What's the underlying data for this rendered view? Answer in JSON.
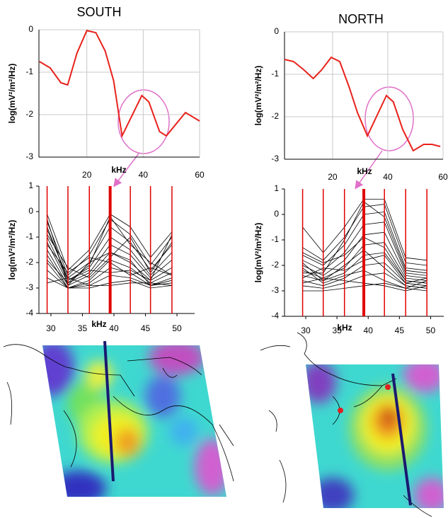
{
  "chart_data": [
    {
      "type": "line",
      "title": "SOUTH",
      "x_label": "kHz",
      "y_label": "log(mV²/m²/Hz)",
      "x": [
        3.2,
        7,
        10.8,
        13.2,
        16.5,
        20,
        23.2,
        26.5,
        29.5,
        32.5,
        39.5,
        42,
        45.8,
        48.2,
        55,
        60
      ],
      "series": [
        {
          "color": "#e8221c",
          "values": [
            -0.75,
            -0.9,
            -1.25,
            -1.3,
            -0.55,
            -0.02,
            -0.07,
            -0.5,
            -1.2,
            -2.5,
            -1.55,
            -1.7,
            -2.4,
            -2.5,
            -1.95,
            -2.15
          ]
        }
      ],
      "xlim": [
        3,
        60
      ],
      "xticks": [
        20,
        40,
        60
      ],
      "ylim": [
        -3,
        0
      ],
      "yticks": [
        0,
        -1,
        -2,
        -3
      ],
      "grid": true
    },
    {
      "type": "line",
      "title": "NORTH",
      "x_label": "kHz",
      "y_label": "log(mV²/m²/Hz)",
      "x": [
        2.6,
        5.9,
        9.7,
        13,
        16,
        19.5,
        22.6,
        26,
        29,
        32.6,
        39.5,
        42,
        45.4,
        49.2,
        53,
        56,
        59
      ],
      "series": [
        {
          "color": "#e8221c",
          "values": [
            -0.65,
            -0.7,
            -0.9,
            -1.1,
            -0.9,
            -0.6,
            -0.7,
            -1.3,
            -1.9,
            -2.45,
            -1.5,
            -1.65,
            -2.3,
            -2.8,
            -2.65,
            -2.65,
            -2.7
          ]
        }
      ],
      "xlim": [
        2.6,
        60
      ],
      "xticks": [
        20,
        40,
        60
      ],
      "ylim": [
        -3,
        0
      ],
      "yticks": [
        0,
        -1,
        -2,
        -3
      ],
      "grid": true
    },
    {
      "type": "line",
      "x_label": "kHz",
      "y_label": "log(mV²/m²/Hz)",
      "x": [
        29.4,
        32.7,
        36.1,
        39.4,
        42.6,
        45.8,
        49.2
      ],
      "vline_color": "#e00000",
      "vline_highlight_index": 3,
      "series": [
        {
          "color": "#000000",
          "values": [
            -0.1,
            -2.3,
            -1.5,
            -0.1,
            -0.6,
            -1.8,
            -0.8
          ]
        },
        {
          "color": "#000000",
          "values": [
            -0.4,
            -2.5,
            -1.7,
            -0.3,
            -0.9,
            -2.1,
            -1.0
          ]
        },
        {
          "color": "#000000",
          "values": [
            -0.7,
            -2.6,
            -2.0,
            -0.6,
            -1.2,
            -2.3,
            -1.3
          ]
        },
        {
          "color": "#000000",
          "values": [
            -1.0,
            -2.7,
            -2.2,
            -1.0,
            -1.5,
            -2.5,
            -1.6
          ]
        },
        {
          "color": "#000000",
          "values": [
            -1.2,
            -2.8,
            -2.4,
            -1.3,
            -1.7,
            -2.6,
            -1.9
          ]
        },
        {
          "color": "#000000",
          "values": [
            -1.5,
            -2.9,
            -2.5,
            -1.6,
            -2.0,
            -2.7,
            -2.2
          ]
        },
        {
          "color": "#000000",
          "values": [
            -1.7,
            -3.0,
            -2.7,
            -1.9,
            -2.2,
            -2.8,
            -2.4
          ]
        },
        {
          "color": "#000000",
          "values": [
            -2.0,
            -3.0,
            -2.8,
            -2.2,
            -2.4,
            -2.9,
            -2.6
          ]
        },
        {
          "color": "#000000",
          "values": [
            -2.3,
            -3.0,
            -2.9,
            -2.5,
            -2.6,
            -2.9,
            -2.7
          ]
        },
        {
          "color": "#000000",
          "values": [
            -2.6,
            -3.0,
            -3.0,
            -2.8,
            -2.7,
            -3.0,
            -2.9
          ]
        },
        {
          "color": "#000000",
          "values": [
            -0.3,
            -2.9,
            -2.0,
            -1.6,
            -1.9,
            -2.9,
            -2.8
          ]
        },
        {
          "color": "#000000",
          "values": [
            -1.3,
            -2.4,
            -1.8,
            -2.0,
            -2.5,
            -2.2,
            -2.5
          ]
        },
        {
          "color": "#000000",
          "values": [
            -0.9,
            -2.2,
            -2.6,
            -1.8,
            -1.0,
            -2.4,
            -1.2
          ]
        },
        {
          "color": "#000000",
          "values": [
            -2.8,
            -2.6,
            -2.9,
            -2.9,
            -2.8,
            -2.8,
            -2.9
          ]
        },
        {
          "color": "#000000",
          "values": [
            -1.9,
            -2.8,
            -2.1,
            -0.2,
            -1.3,
            -2.0,
            -2.5
          ]
        },
        {
          "color": "#000000",
          "values": [
            -0.6,
            -2.7,
            -2.3,
            -2.4,
            -2.3,
            -2.7,
            -0.9
          ]
        }
      ],
      "xlim": [
        28.1,
        52.8
      ],
      "xticks": [
        30,
        35,
        40,
        45,
        50
      ],
      "ylim": [
        -4,
        1
      ],
      "yticks": [
        1,
        0,
        -1,
        -2,
        -3,
        -4
      ],
      "grid": false
    },
    {
      "type": "line",
      "x_label": "kHz",
      "y_label": "log(mV²/m²/Hz)",
      "x": [
        29.5,
        32.8,
        36.2,
        39.3,
        42.6,
        46,
        49.4
      ],
      "vline_color": "#e00000",
      "vline_highlight_index": 3,
      "series": [
        {
          "color": "#000000",
          "values": [
            -0.5,
            -1.5,
            -0.5,
            0.6,
            0.6,
            -1.7,
            -1.8
          ]
        },
        {
          "color": "#000000",
          "values": [
            -1.3,
            -1.8,
            -0.9,
            0.3,
            0.4,
            -1.9,
            -2.0
          ]
        },
        {
          "color": "#000000",
          "values": [
            -1.6,
            -2.0,
            -1.2,
            0.0,
            0.1,
            -2.1,
            -2.2
          ]
        },
        {
          "color": "#000000",
          "values": [
            -1.8,
            -2.2,
            -1.5,
            -0.4,
            -0.3,
            -2.3,
            -2.4
          ]
        },
        {
          "color": "#000000",
          "values": [
            -2.0,
            -2.4,
            -1.8,
            -0.8,
            -0.7,
            -2.4,
            -2.5
          ]
        },
        {
          "color": "#000000",
          "values": [
            -2.2,
            -2.5,
            -2.1,
            -1.2,
            -1.1,
            -2.5,
            -2.6
          ]
        },
        {
          "color": "#000000",
          "values": [
            -2.4,
            -2.6,
            -2.3,
            -1.6,
            -1.5,
            -2.6,
            -2.7
          ]
        },
        {
          "color": "#000000",
          "values": [
            -2.6,
            -2.8,
            -2.5,
            -2.0,
            -1.9,
            -2.7,
            -2.8
          ]
        },
        {
          "color": "#000000",
          "values": [
            -2.8,
            -2.9,
            -2.7,
            -2.4,
            -2.3,
            -2.8,
            -2.9
          ]
        },
        {
          "color": "#000000",
          "values": [
            -3.0,
            -3.0,
            -2.9,
            -2.8,
            -2.7,
            -2.9,
            -3.0
          ]
        },
        {
          "color": "#000000",
          "values": [
            -2.1,
            -2.7,
            -2.4,
            -2.2,
            -2.6,
            -2.9,
            -2.6
          ]
        },
        {
          "color": "#000000",
          "values": [
            -1.5,
            -1.9,
            -1.6,
            -0.9,
            -1.3,
            -2.6,
            -2.7
          ]
        },
        {
          "color": "#000000",
          "values": [
            -2.3,
            -2.3,
            -1.0,
            0.5,
            -0.1,
            -2.2,
            -2.3
          ]
        },
        {
          "color": "#000000",
          "values": [
            -2.7,
            -2.5,
            -2.6,
            -2.7,
            -2.8,
            -3.0,
            -2.8
          ]
        },
        {
          "color": "#000000",
          "values": [
            -1.9,
            -2.6,
            -2.0,
            -1.4,
            -2.1,
            -2.8,
            -2.9
          ]
        },
        {
          "color": "#000000",
          "values": [
            -2.5,
            -2.1,
            -2.2,
            -1.8,
            -1.6,
            -2.7,
            -2.5
          ]
        }
      ],
      "xlim": [
        26.6,
        52.1
      ],
      "xticks": [
        30,
        35,
        40,
        45,
        50
      ],
      "ylim": [
        -4,
        1
      ],
      "yticks": [
        1,
        0,
        -1,
        -2,
        -3,
        -4
      ],
      "grid": false
    }
  ]
}
